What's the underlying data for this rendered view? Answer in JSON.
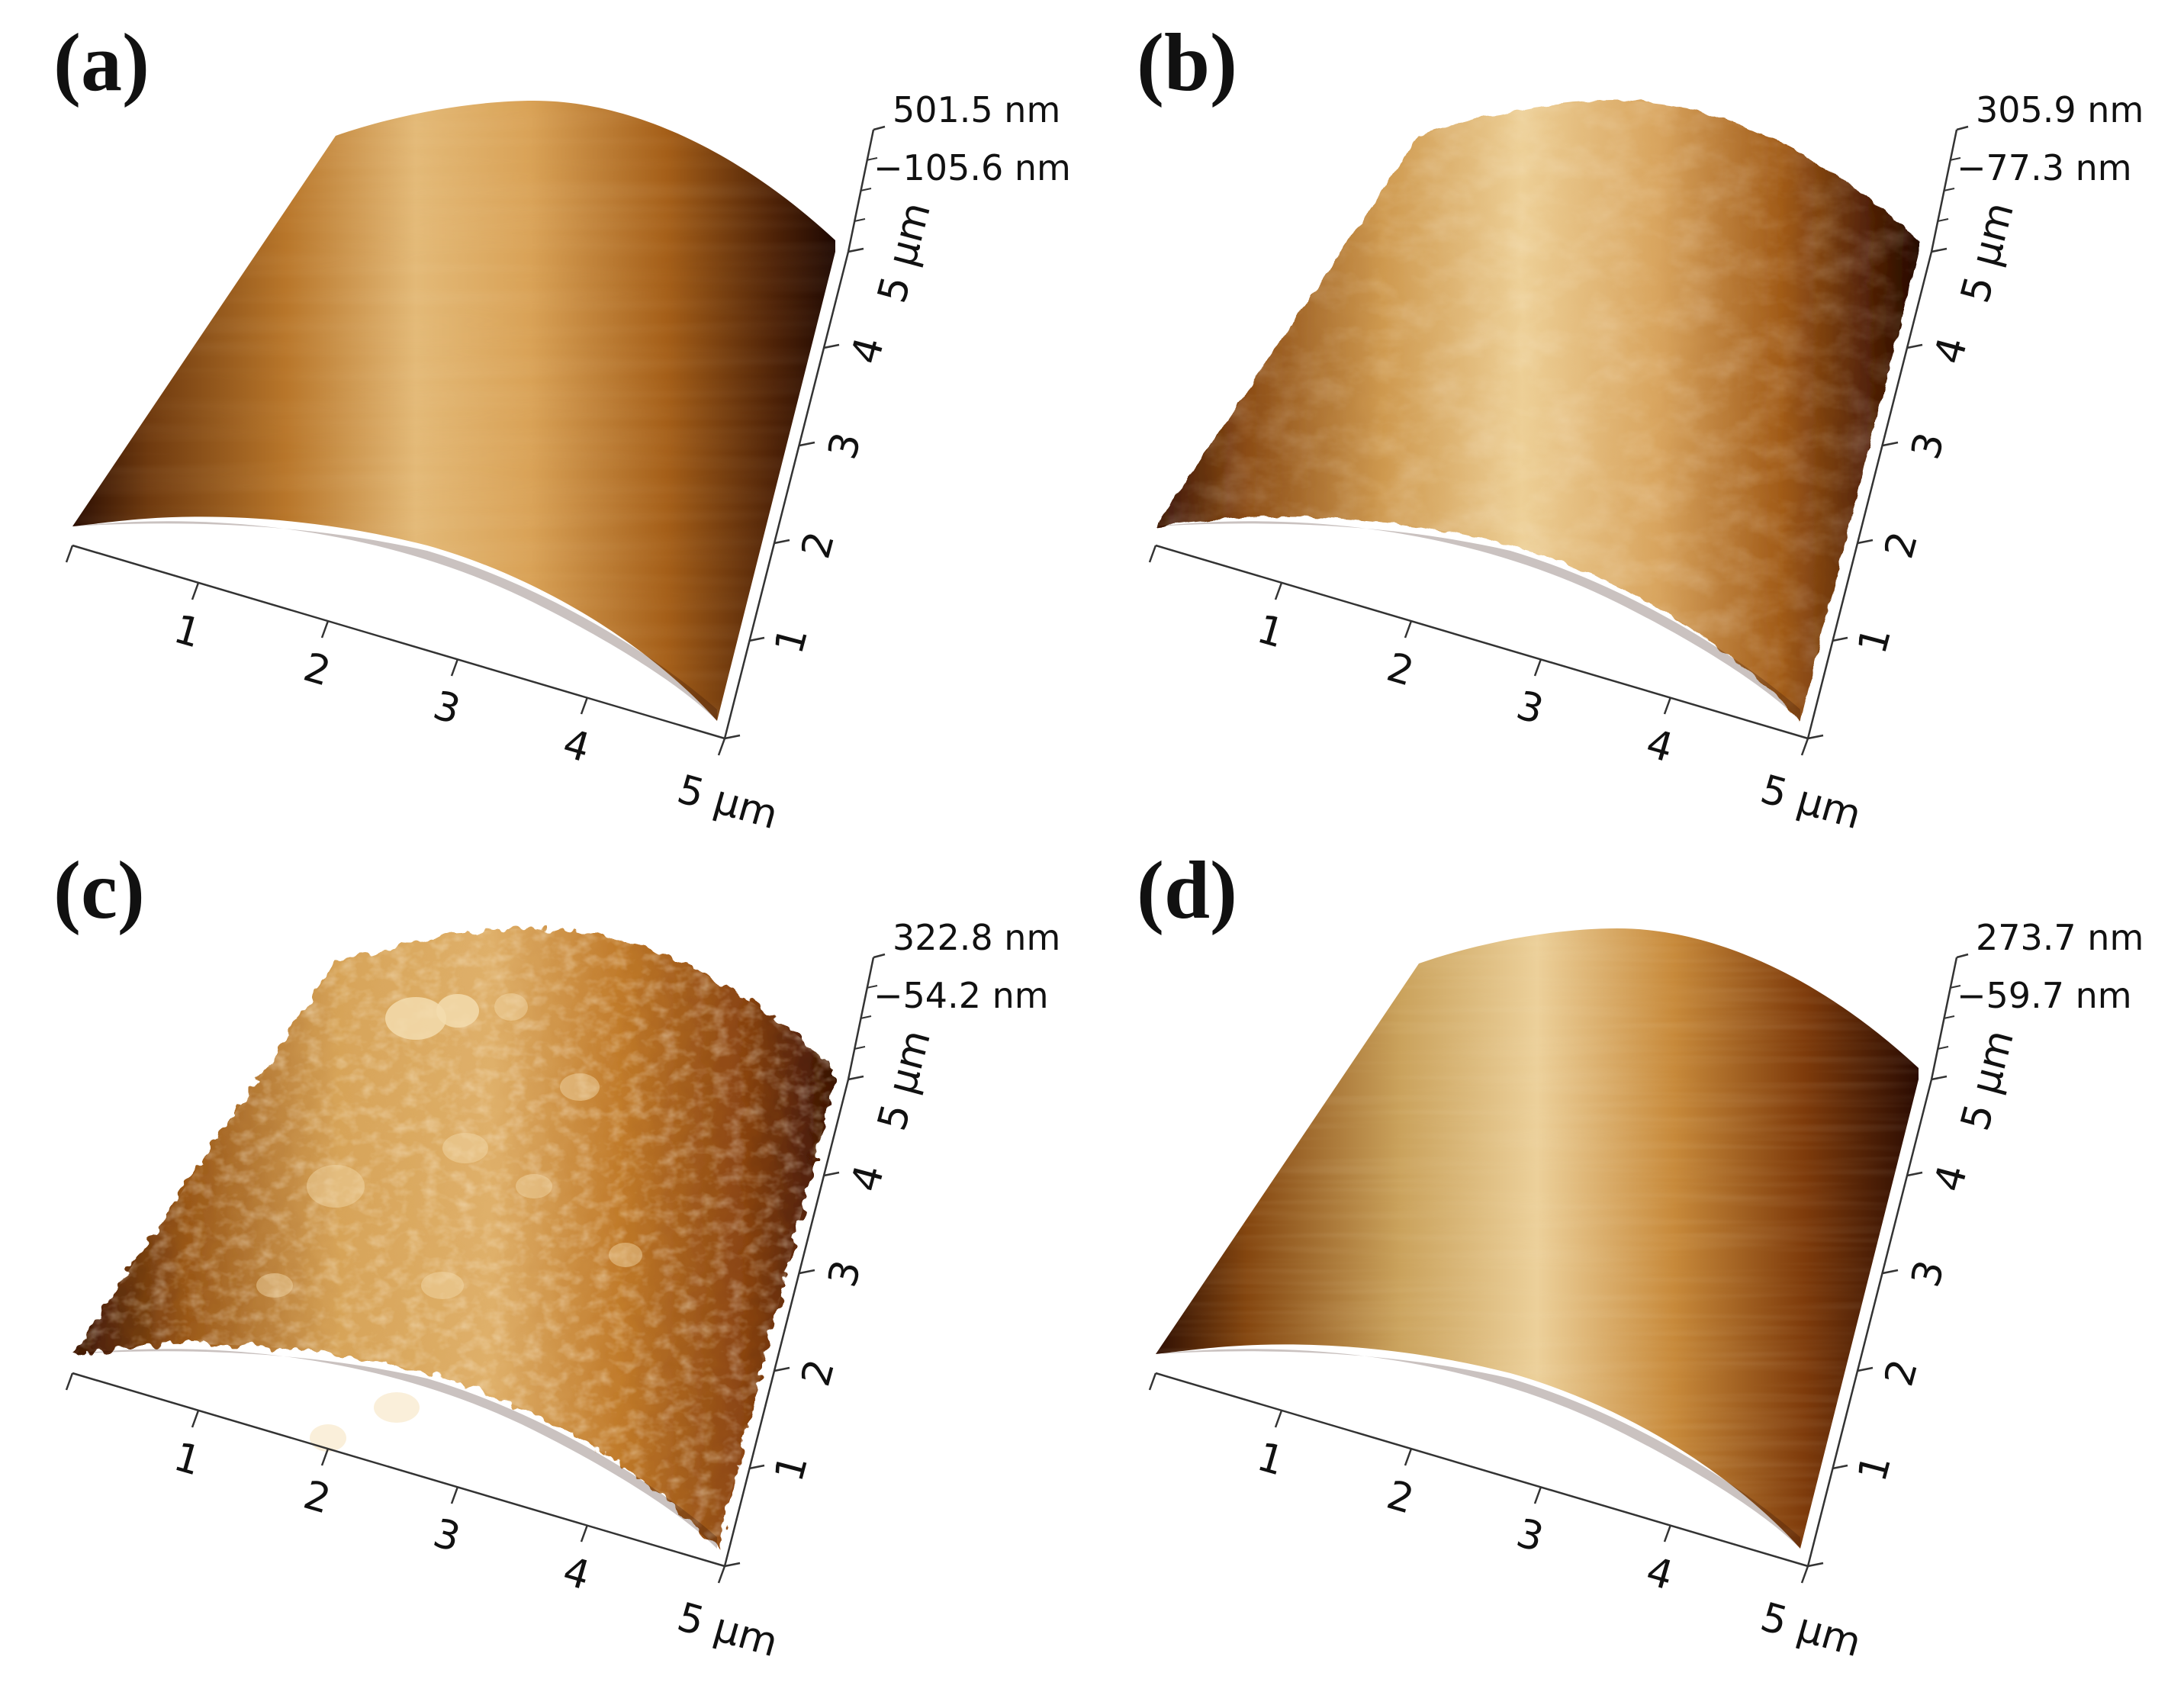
{
  "panels": [
    {
      "id": "a",
      "letter": "(a)",
      "z_max": "501.5 nm",
      "z_min": "−105.6 nm",
      "x_ticks": [
        "1",
        "2",
        "3",
        "4",
        "5 µm"
      ],
      "y_ticks": [
        "1",
        "2",
        "3",
        "4",
        "5 µm"
      ],
      "texture": "smooth"
    },
    {
      "id": "b",
      "letter": "(b)",
      "z_max": "305.9 nm",
      "z_min": "−77.3 nm",
      "x_ticks": [
        "1",
        "2",
        "3",
        "4",
        "5 µm"
      ],
      "y_ticks": [
        "1",
        "2",
        "3",
        "4",
        "5 µm"
      ],
      "texture": "mottled"
    },
    {
      "id": "c",
      "letter": "(c)",
      "z_max": "322.8 nm",
      "z_min": "−54.2 nm",
      "x_ticks": [
        "1",
        "2",
        "3",
        "4",
        "5 µm"
      ],
      "y_ticks": [
        "1",
        "2",
        "3",
        "4",
        "5 µm"
      ],
      "texture": "grainy"
    },
    {
      "id": "d",
      "letter": "(d)",
      "z_max": "273.7 nm",
      "z_min": "−59.7 nm",
      "x_ticks": [
        "1",
        "2",
        "3",
        "4",
        "5 µm"
      ],
      "y_ticks": [
        "1",
        "2",
        "3",
        "4",
        "5 µm"
      ],
      "texture": "striated"
    }
  ],
  "colors": {
    "dark": "#2a0d02",
    "mid": "#b9701f",
    "light": "#ecc98e",
    "highlight": "#f8ecd0",
    "axis": "#333333",
    "text": "#111111"
  }
}
